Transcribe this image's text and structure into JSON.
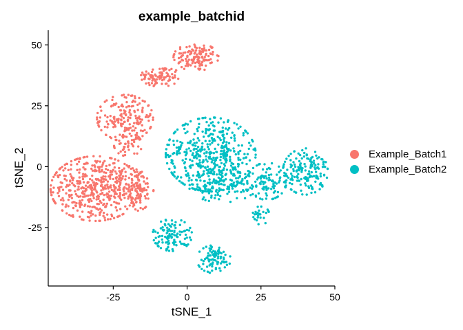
{
  "chart_data": {
    "type": "scatter",
    "title": "example_batchid",
    "xlabel": "tSNE_1",
    "ylabel": "tSNE_2",
    "xlim": [
      -47,
      50
    ],
    "ylim": [
      -49,
      56
    ],
    "xticks": [
      -25,
      0,
      25,
      50
    ],
    "yticks": [
      -25,
      0,
      25,
      50
    ],
    "xtick_labels": [
      "-25",
      "0",
      "25",
      "50"
    ],
    "ytick_labels": [
      "-25",
      "0",
      "25",
      "50"
    ],
    "grid": false,
    "legend_position": "right",
    "series": [
      {
        "name": "Example_Batch1",
        "color": "#F8766D",
        "clusters": [
          {
            "cx": 3,
            "cy": 45,
            "sx": 4,
            "sy": 3,
            "n": 130
          },
          {
            "cx": -9,
            "cy": 37,
            "sx": 3.5,
            "sy": 2.2,
            "n": 90
          },
          {
            "cx": -21,
            "cy": 20,
            "sx": 5,
            "sy": 5,
            "n": 180
          },
          {
            "cx": -20,
            "cy": 9,
            "sx": 2.5,
            "sy": 2.5,
            "n": 50
          },
          {
            "cx": -31,
            "cy": -9,
            "sx": 8,
            "sy": 7,
            "n": 480
          },
          {
            "cx": -18,
            "cy": -9,
            "sx": 3.5,
            "sy": 5,
            "n": 120
          }
        ]
      },
      {
        "name": "Example_Batch2",
        "color": "#00BFC4",
        "clusters": [
          {
            "cx": 8,
            "cy": 5,
            "sx": 8,
            "sy": 8,
            "n": 480
          },
          {
            "cx": 12,
            "cy": -8,
            "sx": 6,
            "sy": 3.5,
            "n": 120
          },
          {
            "cx": 27,
            "cy": -6,
            "sx": 3.5,
            "sy": 4,
            "n": 100
          },
          {
            "cx": 40,
            "cy": -2,
            "sx": 4,
            "sy": 5,
            "n": 170
          },
          {
            "cx": 25,
            "cy": -20,
            "sx": 1.5,
            "sy": 2,
            "n": 25
          },
          {
            "cx": -5,
            "cy": -28,
            "sx": 3.5,
            "sy": 3.5,
            "n": 110
          },
          {
            "cx": 9,
            "cy": -38,
            "sx": 3,
            "sy": 3,
            "n": 90
          }
        ]
      }
    ]
  }
}
